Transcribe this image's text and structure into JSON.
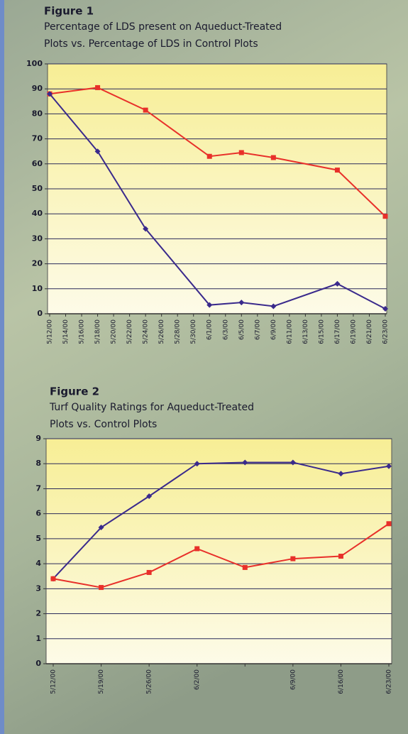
{
  "chart_data": [
    {
      "type": "line",
      "title": "Figure 1",
      "subtitle": [
        "Percentage of LDS present on Aqueduct-Treated",
        "Plots vs. Percentage of LDS in Control Plots"
      ],
      "categories": [
        "5/12/00",
        "5/14/00",
        "5/16/00",
        "5/18/00",
        "5/20/00",
        "5/22/00",
        "5/24/00",
        "5/26/00",
        "5/28/00",
        "5/30/00",
        "6/1/00",
        "6/3/00",
        "6/5/00",
        "6/7/00",
        "6/9/00",
        "6/11/00",
        "6/13/00",
        "6/15/00",
        "6/17/00",
        "6/19/00",
        "6/21/00",
        "6/23/00"
      ],
      "series": [
        {
          "color": "#e8302a",
          "marker": "square",
          "values": [
            88,
            null,
            null,
            90.5,
            null,
            null,
            81.5,
            null,
            null,
            null,
            63,
            null,
            64.5,
            null,
            62.5,
            null,
            null,
            null,
            57.5,
            null,
            null,
            39
          ]
        },
        {
          "color": "#3a2a8c",
          "marker": "diamond",
          "values": [
            88,
            null,
            null,
            65,
            null,
            null,
            34,
            null,
            null,
            null,
            3.5,
            null,
            4.5,
            null,
            3,
            null,
            null,
            null,
            12,
            null,
            null,
            2
          ]
        }
      ],
      "ylim": [
        0,
        100
      ],
      "yticks": [
        0,
        10,
        20,
        30,
        40,
        50,
        60,
        70,
        80,
        90,
        100
      ],
      "grid": true
    },
    {
      "type": "line",
      "title": "Figure 2",
      "subtitle": [
        "Turf Quality Ratings for Aqueduct-Treated",
        "Plots vs. Control Plots"
      ],
      "categories": [
        "5/12/00",
        "5/19/00",
        "5/26/00",
        "6/2/00",
        null,
        "6/9/00",
        "6/16/00",
        "6/23/00"
      ],
      "series": [
        {
          "color": "#3a2a8c",
          "marker": "diamond",
          "values": [
            3.4,
            5.45,
            6.7,
            8.0,
            8.05,
            8.05,
            7.6,
            7.9
          ]
        },
        {
          "color": "#e8302a",
          "marker": "square",
          "values": [
            3.4,
            3.05,
            3.65,
            4.6,
            3.85,
            4.2,
            4.3,
            5.6
          ]
        }
      ],
      "ylim": [
        0,
        9
      ],
      "yticks": [
        0,
        1,
        2,
        3,
        4,
        5,
        6,
        7,
        8,
        9
      ],
      "grid": true
    }
  ]
}
